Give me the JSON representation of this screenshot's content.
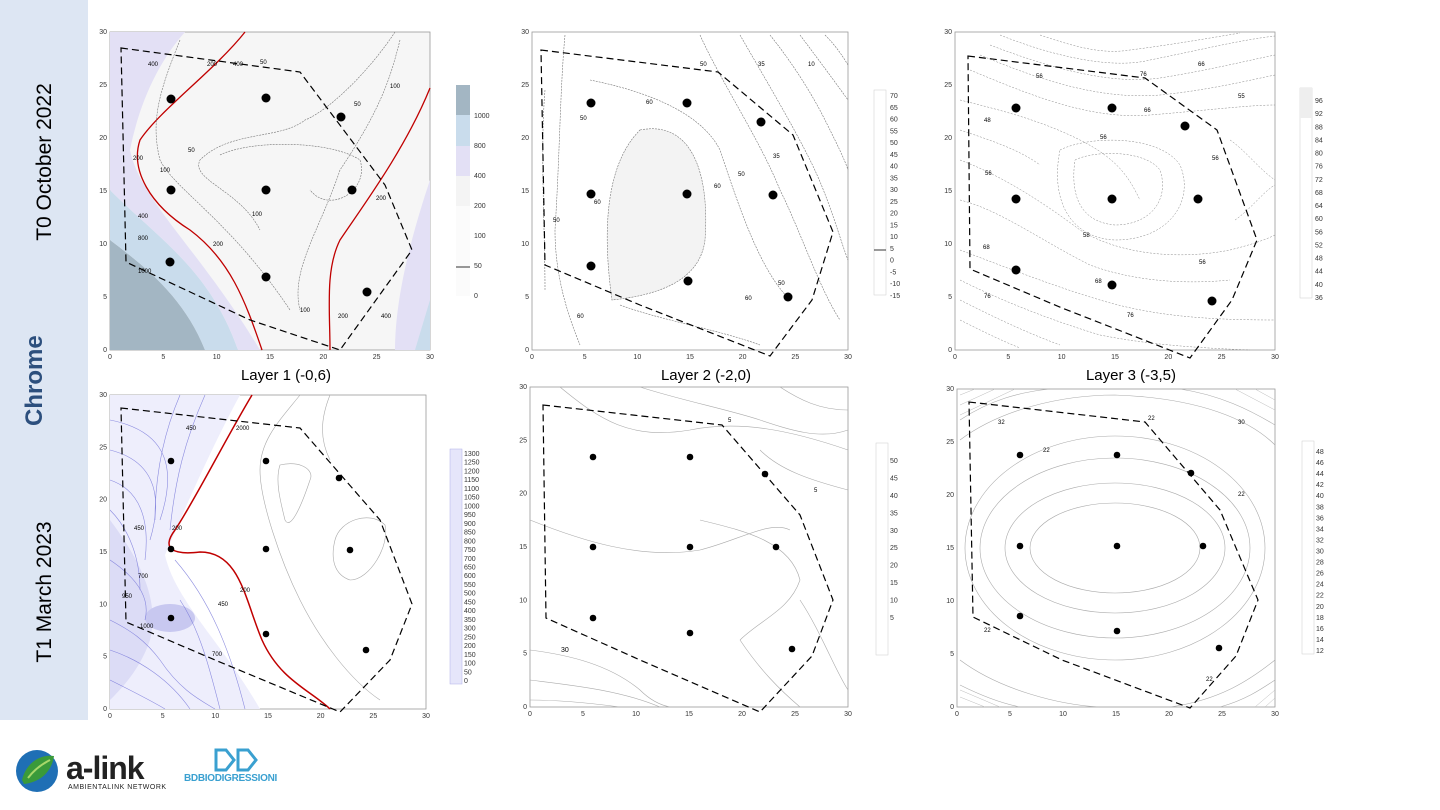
{
  "sidebar": {
    "title": "Chrome",
    "row_top": "T0  October 2022",
    "row_bottom": "T1  March 2023"
  },
  "captions": {
    "layer1": "Layer 1 (-0,6)",
    "layer2": "Layer 2 (-2,0)",
    "layer3": "Layer 3 (-3,5)"
  },
  "axis_ticks": [
    "0",
    "5",
    "10",
    "15",
    "20",
    "25",
    "30"
  ],
  "legends": {
    "t0_layer1": [
      "1000",
      "800",
      "400",
      "200",
      "100",
      "50",
      "0"
    ],
    "t0_layer2": [
      "70",
      "65",
      "60",
      "55",
      "50",
      "45",
      "40",
      "35",
      "30",
      "25",
      "20",
      "15",
      "10",
      "5",
      "0",
      "-5",
      "-10",
      "-15"
    ],
    "t0_layer3": [
      "96",
      "92",
      "88",
      "84",
      "80",
      "76",
      "72",
      "68",
      "64",
      "60",
      "56",
      "52",
      "48",
      "44",
      "40",
      "36"
    ],
    "t1_layer1": [
      "1300",
      "1250",
      "1200",
      "1150",
      "1100",
      "1050",
      "1000",
      "950",
      "900",
      "850",
      "800",
      "750",
      "700",
      "650",
      "600",
      "550",
      "500",
      "450",
      "400",
      "350",
      "300",
      "250",
      "200",
      "150",
      "100",
      "50",
      "0"
    ],
    "t1_layer2": [
      "50",
      "45",
      "40",
      "35",
      "30",
      "25",
      "20",
      "15",
      "10",
      "5"
    ],
    "t1_layer3": [
      "48",
      "46",
      "44",
      "42",
      "40",
      "38",
      "36",
      "34",
      "32",
      "30",
      "28",
      "26",
      "24",
      "22",
      "20",
      "18",
      "16",
      "14",
      "12"
    ]
  },
  "contour_labels": {
    "t0_layer1": [
      "400",
      "200",
      "400",
      "50",
      "100",
      "50",
      "200",
      "100",
      "50",
      "100",
      "200",
      "400",
      "800",
      "1000",
      "200",
      "100",
      "200",
      "400"
    ],
    "t0_layer2": [
      "50",
      "35",
      "10",
      "60",
      "50",
      "60",
      "60",
      "50",
      "35",
      "50",
      "60",
      "60",
      "50"
    ],
    "t0_layer3": [
      "76",
      "66",
      "56",
      "55",
      "66",
      "48",
      "56",
      "56",
      "56",
      "58",
      "56",
      "68",
      "68",
      "76",
      "76"
    ],
    "t1_layer1": [
      "450",
      "2000",
      "450",
      "200",
      "200",
      "700",
      "950",
      "1000",
      "450",
      "700"
    ],
    "t1_layer2": [
      "5",
      "5",
      "30"
    ],
    "t1_layer3": [
      "32",
      "22",
      "22",
      "30",
      "22",
      "22",
      "22"
    ]
  },
  "colors": {
    "sidebar_bg": "#dde6f3",
    "sidebar_title": "#2c4f7d",
    "contour_red": "#c00000",
    "fill_1000": "#a3b6c3",
    "fill_800": "#c9dcec",
    "fill_400": "#e3e0f5",
    "fill_200": "#f4f4f4",
    "t1_blue": "#6b6bd6",
    "alink_green": "#3a9a3a",
    "bd_blue": "#3aa0d0"
  },
  "logos": {
    "alink_name": "a-link",
    "alink_sub": "AMBIENTALINK NETWORK",
    "bd_name": "BDBIODIGRESSIONI"
  }
}
